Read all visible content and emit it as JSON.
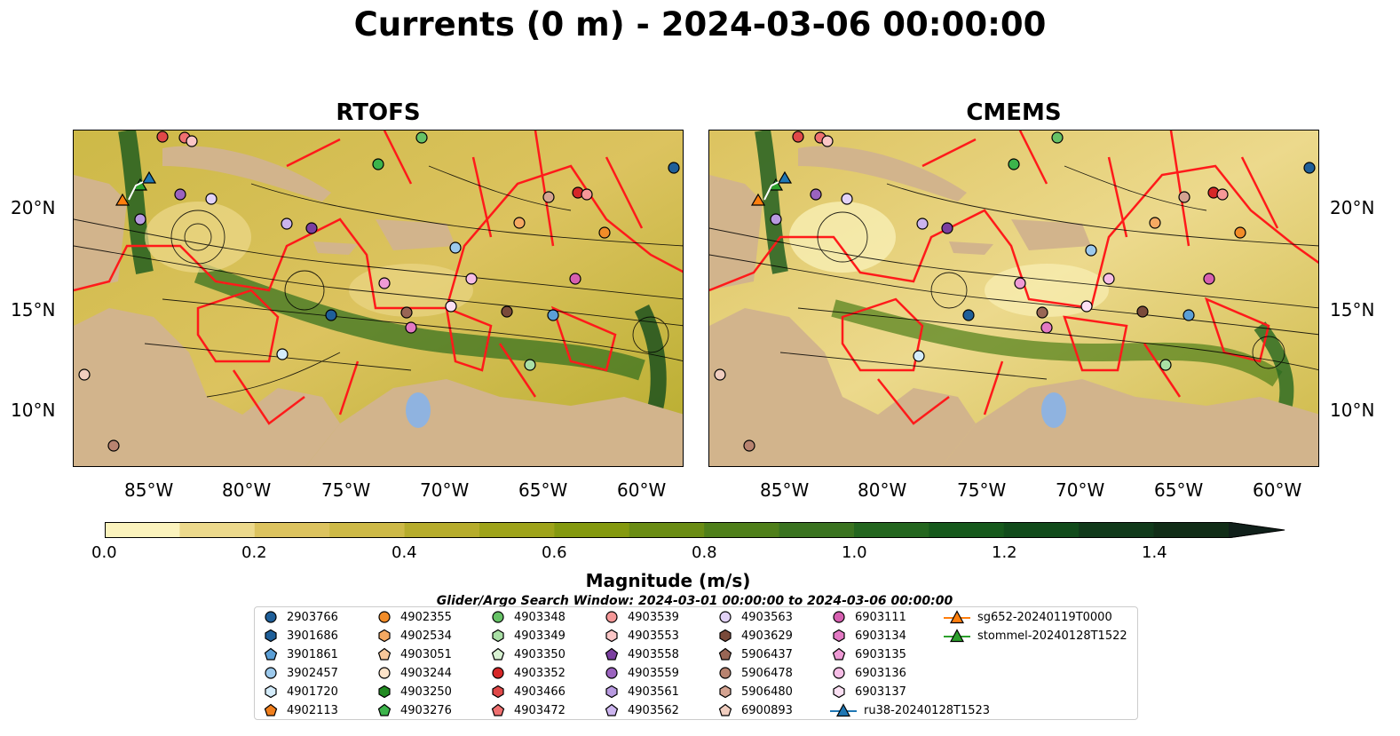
{
  "title": "Currents (0 m) - 2024-03-06 00:00:00",
  "panels": [
    {
      "title": "RTOFS"
    },
    {
      "title": "CMEMS"
    }
  ],
  "axes": {
    "lon_ticks": [
      "85°W",
      "80°W",
      "75°W",
      "70°W",
      "65°W",
      "60°W"
    ],
    "lat_ticks": [
      "20°N",
      "15°N",
      "10°N"
    ]
  },
  "colorbar": {
    "label": "Magnitude (m/s)",
    "ticks": [
      "0.0",
      "0.2",
      "0.4",
      "0.6",
      "0.8",
      "1.0",
      "1.2",
      "1.4"
    ],
    "colors": [
      "#fbf3bd",
      "#ecd98c",
      "#dcc35f",
      "#cdb947",
      "#b6ac2c",
      "#9ea31a",
      "#84990f",
      "#6a8c14",
      "#4f7f1a",
      "#3a7320",
      "#24661f",
      "#16591c",
      "#114b1b",
      "#113a1b",
      "#112d17",
      "#10201a"
    ]
  },
  "search_window": "Glider/Argo Search Window: 2024-03-01 00:00:00 to 2024-03-06 00:00:00",
  "legend": [
    {
      "label": "2903766",
      "color": "#1f5f99",
      "shape": "circle"
    },
    {
      "label": "3901686",
      "color": "#1f5f99",
      "shape": "hexagon"
    },
    {
      "label": "3901861",
      "color": "#5b9fd6",
      "shape": "pentagon"
    },
    {
      "label": "3902457",
      "color": "#9cc9ec",
      "shape": "circle"
    },
    {
      "label": "4901720",
      "color": "#d4ecfb",
      "shape": "hexagon"
    },
    {
      "label": "4902113",
      "color": "#f07f1d",
      "shape": "pentagon"
    },
    {
      "label": "4902355",
      "color": "#f28c28",
      "shape": "circle"
    },
    {
      "label": "4902534",
      "color": "#f5a962",
      "shape": "hexagon"
    },
    {
      "label": "4903051",
      "color": "#f8c79a",
      "shape": "pentagon"
    },
    {
      "label": "4903244",
      "color": "#fde3c9",
      "shape": "circle"
    },
    {
      "label": "4903250",
      "color": "#228b22",
      "shape": "hexagon"
    },
    {
      "label": "4903276",
      "color": "#3cb44b",
      "shape": "pentagon"
    },
    {
      "label": "4903348",
      "color": "#66c266",
      "shape": "circle"
    },
    {
      "label": "4903349",
      "color": "#a9dfa5",
      "shape": "hexagon"
    },
    {
      "label": "4903350",
      "color": "#d8f2d2",
      "shape": "pentagon"
    },
    {
      "label": "4903352",
      "color": "#d62728",
      "shape": "circle"
    },
    {
      "label": "4903466",
      "color": "#e04848",
      "shape": "hexagon"
    },
    {
      "label": "4903472",
      "color": "#ef7070",
      "shape": "pentagon"
    },
    {
      "label": "4903539",
      "color": "#f59898",
      "shape": "circle"
    },
    {
      "label": "4903553",
      "color": "#fbc6c6",
      "shape": "hexagon"
    },
    {
      "label": "4903558",
      "color": "#7b3fa0",
      "shape": "pentagon"
    },
    {
      "label": "4903559",
      "color": "#9b63bf",
      "shape": "circle"
    },
    {
      "label": "4903561",
      "color": "#b89ae0",
      "shape": "hexagon"
    },
    {
      "label": "4903562",
      "color": "#cbb4ee",
      "shape": "pentagon"
    },
    {
      "label": "4903563",
      "color": "#e2d2f7",
      "shape": "circle"
    },
    {
      "label": "4903629",
      "color": "#7a4a3a",
      "shape": "hexagon"
    },
    {
      "label": "5906437",
      "color": "#996655",
      "shape": "pentagon"
    },
    {
      "label": "5906478",
      "color": "#b88370",
      "shape": "circle"
    },
    {
      "label": "5906480",
      "color": "#d4a391",
      "shape": "hexagon"
    },
    {
      "label": "6900893",
      "color": "#f0cdbf",
      "shape": "pentagon"
    },
    {
      "label": "6903111",
      "color": "#d65fb0",
      "shape": "circle"
    },
    {
      "label": "6903134",
      "color": "#e379c3",
      "shape": "hexagon"
    },
    {
      "label": "6903135",
      "color": "#ee9ad5",
      "shape": "pentagon"
    },
    {
      "label": "6903136",
      "color": "#f6bde6",
      "shape": "circle"
    },
    {
      "label": "6903137",
      "color": "#fbe0f3",
      "shape": "hexagon"
    },
    {
      "label": "ru38-20240128T1523",
      "color": "#1f77b4",
      "shape": "triangle-line"
    },
    {
      "label": "sg652-20240119T0000",
      "color": "#ff7f0e",
      "shape": "triangle-line"
    },
    {
      "label": "stommel-20240128T1522",
      "color": "#2ca02c",
      "shape": "triangle-line"
    }
  ]
}
